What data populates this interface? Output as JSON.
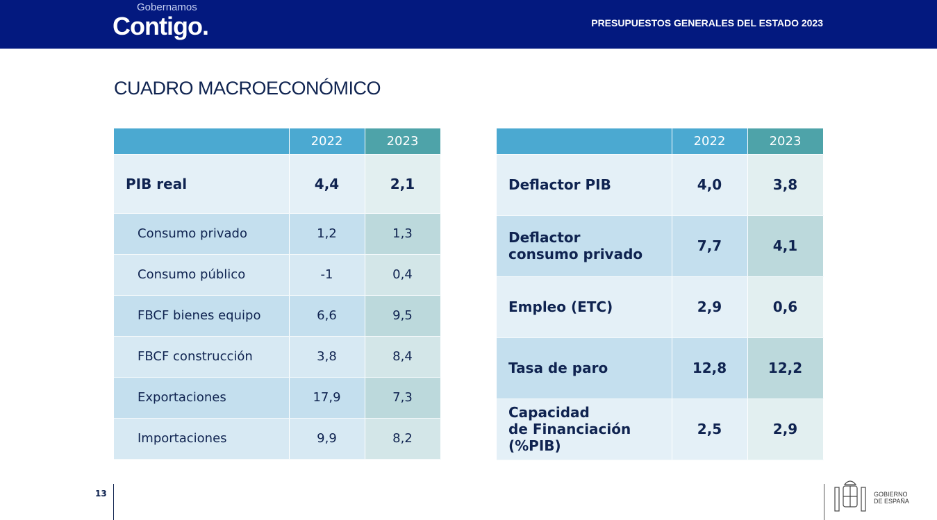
{
  "header": {
    "logo_small": "Gobernamos",
    "logo_big": "Contigo.",
    "title": "PRESUPUESTOS GENERALES DEL ESTADO 2023"
  },
  "page_title": "CUADRO MACROECONÓMICO",
  "left_table": {
    "headers": [
      "",
      "2022",
      "2023"
    ],
    "rows": [
      {
        "label": "PIB real",
        "v2022": "4,4",
        "v2023": "2,1"
      },
      {
        "label": "Consumo privado",
        "v2022": "1,2",
        "v2023": "1,3"
      },
      {
        "label": "Consumo público",
        "v2022": "-1",
        "v2023": "0,4"
      },
      {
        "label": "FBCF bienes equipo",
        "v2022": "6,6",
        "v2023": "9,5"
      },
      {
        "label": "FBCF construcción",
        "v2022": "3,8",
        "v2023": "8,4"
      },
      {
        "label": "Exportaciones",
        "v2022": "17,9",
        "v2023": "7,3"
      },
      {
        "label": "Importaciones",
        "v2022": "9,9",
        "v2023": "8,2"
      }
    ]
  },
  "right_table": {
    "headers": [
      "",
      "2022",
      "2023"
    ],
    "rows": [
      {
        "label1": "Deflactor PIB",
        "label2": "",
        "v2022": "4,0",
        "v2023": "3,8"
      },
      {
        "label1": "Deflactor",
        "label2": "consumo privado",
        "v2022": "7,7",
        "v2023": "4,1"
      },
      {
        "label1": "Empleo (ETC)",
        "label2": "",
        "v2022": "2,9",
        "v2023": "0,6"
      },
      {
        "label1": "Tasa de paro",
        "label2": "",
        "v2022": "12,8",
        "v2023": "12,2"
      },
      {
        "label1": "Capacidad",
        "label2": "de Financiación (%PIB)",
        "v2022": "2,5",
        "v2023": "2,9"
      }
    ]
  },
  "footer": {
    "page_number": "13",
    "gov_line1": "GOBIERNO",
    "gov_line2": "DE ESPAÑA"
  }
}
